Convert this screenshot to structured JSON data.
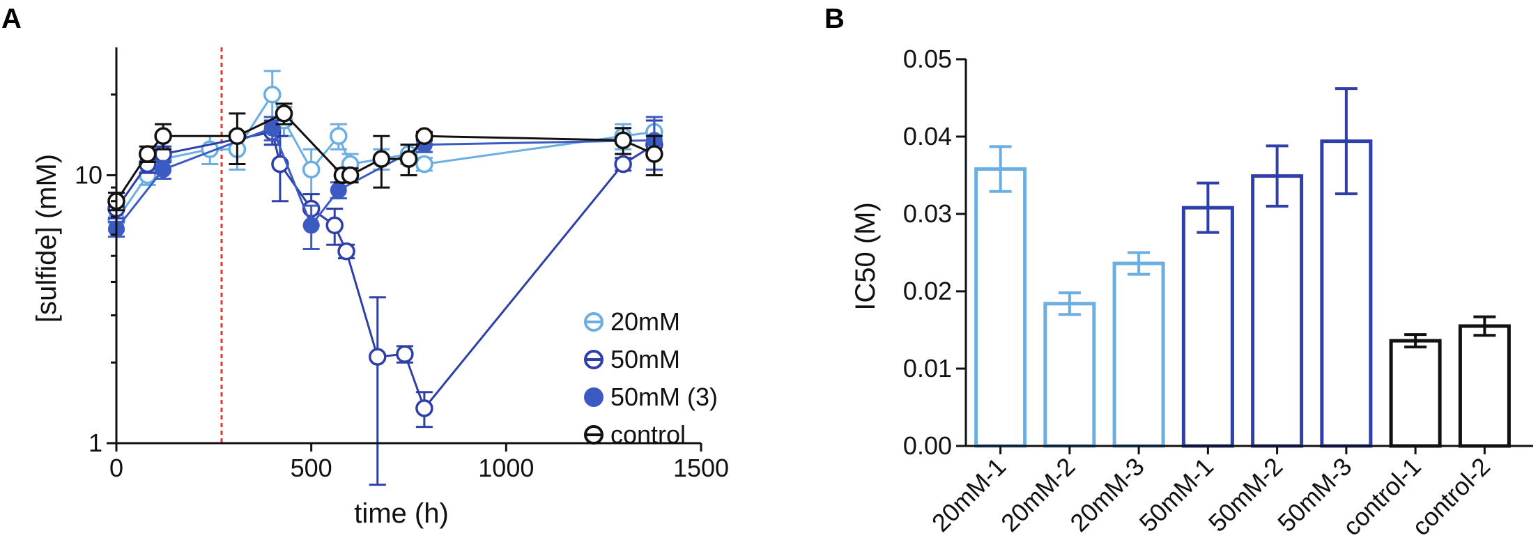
{
  "panel_a_letter": "A",
  "panel_b_letter": "B",
  "colors": {
    "20mM": "#6AAEE2",
    "50mM": "#2E3FA8",
    "50mM_3": "#3B5BC2",
    "control": "#111111",
    "marker_line": "#E8332A"
  },
  "chart_data": [
    {
      "type": "line",
      "panel": "A",
      "xlabel": "time (h)",
      "ylabel": "[sulfide] (mM)",
      "xlim": [
        0,
        1500
      ],
      "ylim": [
        1,
        30
      ],
      "yscale": "log",
      "xticks": [
        0,
        500,
        1000,
        1500
      ],
      "yticks": [
        1,
        10
      ],
      "vline_x": 270,
      "legend_position": "right",
      "series": [
        {
          "key": "20mM",
          "name": "20mM",
          "color": "#6AAEE2",
          "marker": "open-circle-bar",
          "x": [
            0,
            80,
            120,
            240,
            310,
            400,
            430,
            500,
            570,
            600,
            680,
            750,
            790,
            1300,
            1380
          ],
          "y": [
            6.8,
            10.0,
            11.5,
            12.5,
            12.5,
            20.0,
            16.0,
            10.5,
            14.0,
            11.0,
            11.5,
            12.0,
            11.0,
            14.0,
            14.5
          ],
          "err": [
            0.6,
            0.8,
            0.8,
            1.5,
            2.0,
            4.5,
            2.0,
            2.0,
            1.5,
            1.0,
            1.0,
            1.0,
            0.6,
            1.5,
            1.5
          ]
        },
        {
          "key": "50mM",
          "name": "50mM",
          "color": "#2E3FA8",
          "marker": "open-circle-bar",
          "x": [
            0,
            80,
            120,
            400,
            420,
            500,
            560,
            590,
            670,
            740,
            790,
            1300,
            1380
          ],
          "y": [
            7.5,
            11.0,
            12.0,
            14.5,
            11.0,
            7.5,
            6.5,
            5.2,
            2.1,
            2.15,
            1.35,
            11.0,
            13.0
          ],
          "err": [
            0.6,
            0.8,
            0.8,
            1.5,
            3.0,
            1.0,
            1.0,
            0.3,
            1.4,
            0.15,
            0.2,
            0.6,
            3.0
          ]
        },
        {
          "key": "50mM_3",
          "name": "50mM (3)",
          "color": "#3B5BC2",
          "marker": "filled-circle",
          "x": [
            0,
            120,
            400,
            500,
            570,
            790,
            1380
          ],
          "y": [
            6.3,
            10.5,
            15.0,
            6.5,
            8.8,
            13.0,
            13.5
          ],
          "err": [
            0.4,
            0.8,
            1.5,
            1.2,
            0.6,
            0.8,
            3.0
          ]
        },
        {
          "key": "control",
          "name": "control",
          "color": "#111111",
          "marker": "open-circle-bar",
          "x": [
            0,
            80,
            120,
            310,
            430,
            580,
            600,
            680,
            750,
            790,
            1300,
            1380
          ],
          "y": [
            8.0,
            12.0,
            14.0,
            14.0,
            17.0,
            10.0,
            10.0,
            11.5,
            11.5,
            14.0,
            13.5,
            12.0
          ],
          "err": [
            0.6,
            0.8,
            1.5,
            3.0,
            1.5,
            0.6,
            0.6,
            2.5,
            1.5,
            0.5,
            1.5,
            2.0
          ]
        }
      ]
    },
    {
      "type": "bar",
      "panel": "B",
      "xlabel": "",
      "ylabel": "IC50 (M)",
      "ylim": [
        0,
        0.05
      ],
      "yticks": [
        "0.00",
        "0.01",
        "0.02",
        "0.03",
        "0.04",
        "0.05"
      ],
      "categories": [
        "20mM-1",
        "20mM-2",
        "20mM-3",
        "50mM-1",
        "50mM-2",
        "50mM-3",
        "control-1",
        "control-2"
      ],
      "values": [
        0.0358,
        0.0184,
        0.0236,
        0.0308,
        0.0349,
        0.0394,
        0.0136,
        0.0155
      ],
      "errors": [
        0.0029,
        0.0014,
        0.0014,
        0.0032,
        0.0039,
        0.0068,
        0.0008,
        0.0012
      ],
      "bar_colors": [
        "#6AAEE2",
        "#6AAEE2",
        "#6AAEE2",
        "#2E3FA8",
        "#2E3FA8",
        "#2E3FA8",
        "#111111",
        "#111111"
      ]
    }
  ]
}
